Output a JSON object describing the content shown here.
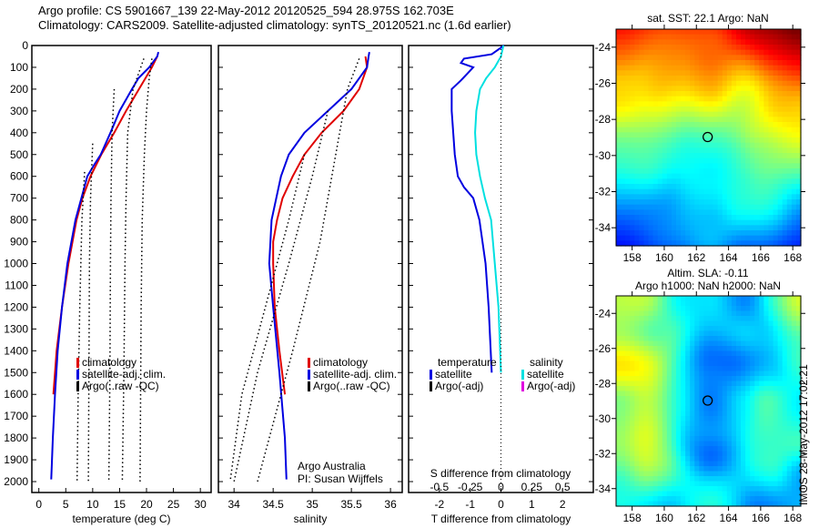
{
  "title_line1": "Argo profile: CS 5901667_139 22-May-2012 20120525_594 28.975S 162.703E",
  "title_line2": "Climatology: CARS2009. Satellite-adjusted climatology: synTS_20120521.nc (1.6d earlier)",
  "footer_stamp": "IMOS 28-May-2012 17:02:21",
  "chart_data": [
    {
      "type": "line",
      "name": "temperature",
      "xlabel": "temperature (deg C)",
      "xlim": [
        -1.3,
        32
      ],
      "ylim": [
        2050,
        0
      ],
      "xticks": [
        0,
        5,
        10,
        15,
        20,
        25,
        30
      ],
      "yticks": [
        0,
        100,
        200,
        300,
        400,
        500,
        600,
        700,
        800,
        900,
        1000,
        1100,
        1200,
        1300,
        1400,
        1500,
        1600,
        1700,
        1800,
        1900,
        2000
      ],
      "legend": [
        "climatology",
        "satellite-adj. clim.",
        "Argo(..raw -QC)"
      ],
      "series": [
        {
          "name": "climatology",
          "color": "#e00000",
          "depth": [
            50,
            100,
            200,
            300,
            400,
            500,
            600,
            700,
            800,
            1000,
            1200,
            1400,
            1600
          ],
          "values": [
            22,
            21,
            18.6,
            16.2,
            14,
            11.6,
            9.6,
            8.1,
            7,
            5.5,
            4.3,
            3.3,
            2.7
          ]
        },
        {
          "name": "satellite-adj. clim.",
          "color": "#0000e0",
          "depth": [
            30,
            50,
            100,
            150,
            200,
            300,
            400,
            500,
            550,
            600,
            800,
            1000,
            1200,
            1400,
            1600,
            1800,
            1990
          ],
          "values": [
            22.2,
            22,
            20.5,
            18.5,
            17.3,
            15,
            13.3,
            11.5,
            10.2,
            9,
            6.8,
            5.3,
            4.3,
            3.5,
            3,
            2.6,
            2.3
          ]
        },
        {
          "name": "Argo dotted 1",
          "color": "#000",
          "depth": [
            60,
            150,
            300,
            500,
            800,
            1200,
            2000
          ],
          "values": [
            21,
            20.5,
            20,
            19.6,
            19.2,
            19,
            18.8
          ]
        },
        {
          "name": "Argo dotted 2",
          "color": "#000",
          "depth": [
            60,
            200,
            400,
            700,
            1000,
            1500,
            2000
          ],
          "values": [
            19.5,
            17.5,
            16.5,
            16.2,
            16,
            15.8,
            15.5
          ]
        },
        {
          "name": "Argo dotted 3",
          "color": "#000",
          "depth": [
            200,
            400,
            700,
            1000,
            1500,
            2000
          ],
          "values": [
            14,
            13.6,
            13.4,
            13.3,
            13.2,
            13
          ]
        },
        {
          "name": "Argo dotted 4",
          "color": "#000",
          "depth": [
            450,
            700,
            1000,
            1500,
            2000
          ],
          "values": [
            10,
            9.6,
            9.4,
            9.3,
            9.2
          ]
        },
        {
          "name": "Argo dotted 5",
          "color": "#000",
          "depth": [
            580,
            800,
            1200,
            1600,
            2000
          ],
          "values": [
            8.5,
            8,
            7.6,
            7.3,
            7.1
          ]
        }
      ]
    },
    {
      "type": "line",
      "name": "salinity",
      "xlabel": "salinity",
      "xlim": [
        33.8,
        36.15
      ],
      "ylim": [
        2050,
        0
      ],
      "xticks": [
        34,
        34.5,
        35,
        35.5,
        36
      ],
      "legend": [
        "climatology",
        "satellite-adj. clim.",
        "Argo(..raw -QC)"
      ],
      "annotation": [
        "Argo Australia",
        "PI: Susan Wijffels"
      ],
      "series": [
        {
          "name": "climatology",
          "color": "#e00000",
          "depth": [
            50,
            100,
            200,
            300,
            400,
            500,
            600,
            700,
            800,
            900,
            1000,
            1200,
            1400,
            1600
          ],
          "values": [
            35.68,
            35.7,
            35.6,
            35.4,
            35.12,
            34.9,
            34.75,
            34.62,
            34.55,
            34.5,
            34.5,
            34.52,
            34.58,
            34.65
          ]
        },
        {
          "name": "satellite-adj. clim.",
          "color": "#0000e0",
          "depth": [
            30,
            50,
            100,
            200,
            300,
            400,
            500,
            600,
            800,
            1000,
            1200,
            1500,
            1800,
            1990
          ],
          "values": [
            35.73,
            35.72,
            35.7,
            35.5,
            35.2,
            34.9,
            34.7,
            34.6,
            34.48,
            34.45,
            34.5,
            34.58,
            34.65,
            34.67
          ]
        },
        {
          "name": "Argo dotted 1",
          "color": "#000",
          "depth": [
            60,
            200,
            500,
            900,
            1400,
            2000
          ],
          "values": [
            35.6,
            35.45,
            35.3,
            35.1,
            34.75,
            34.3
          ]
        },
        {
          "name": "Argo dotted 2",
          "color": "#000",
          "depth": [
            300,
            600,
            1000,
            1500,
            2000
          ],
          "values": [
            35.2,
            35,
            34.7,
            34.3,
            34.0
          ]
        },
        {
          "name": "Argo dotted 3",
          "color": "#000",
          "depth": [
            500,
            800,
            1200,
            1600,
            2000
          ],
          "values": [
            34.9,
            34.7,
            34.4,
            34.1,
            33.95
          ]
        }
      ]
    },
    {
      "type": "line",
      "name": "difference",
      "xlabel": "T difference from climatology",
      "x2label": "S difference from climatology",
      "xlim": [
        -3,
        3
      ],
      "xticks": [
        -2,
        -1,
        0,
        1,
        2
      ],
      "x2ticks": [
        -0.5,
        -0.25,
        0,
        0.25,
        0.5
      ],
      "ylim": [
        2050,
        0
      ],
      "legend_temperature": {
        "title": "temperature",
        "items": [
          "satellite",
          "Argo(-adj)"
        ]
      },
      "legend_salinity": {
        "title": "salinity",
        "items": [
          "satellite",
          "Argo(-adj)"
        ]
      },
      "series": [
        {
          "name": "T satellite",
          "color": "#0000e0",
          "units": "T",
          "depth": [
            0,
            40,
            60,
            80,
            100,
            130,
            160,
            200,
            300,
            400,
            500,
            600,
            650,
            700,
            800,
            1000,
            1200,
            1500
          ],
          "values": [
            0.1,
            -0.3,
            -1.2,
            -1.3,
            -0.9,
            -1.1,
            -1.3,
            -1.6,
            -1.6,
            -1.55,
            -1.5,
            -1.4,
            -1.2,
            -0.9,
            -0.7,
            -0.5,
            -0.4,
            -0.3
          ]
        },
        {
          "name": "S satellite",
          "color": "#00e0e0",
          "units": "S",
          "depth": [
            0,
            50,
            100,
            150,
            200,
            300,
            400,
            500,
            600,
            700,
            800,
            1000,
            1200,
            1500
          ],
          "values": [
            0.02,
            0.0,
            -0.05,
            -0.12,
            -0.17,
            -0.2,
            -0.21,
            -0.2,
            -0.17,
            -0.13,
            -0.08,
            -0.05,
            -0.02,
            0.0
          ]
        }
      ]
    },
    {
      "type": "heatmap",
      "name": "sst_map",
      "title": "sat. SST: 22.1  Argo: NaN",
      "xlim": [
        157,
        168.5
      ],
      "ylim": [
        -35,
        -23
      ],
      "xticks": [
        158,
        160,
        162,
        164,
        166,
        168
      ],
      "yticks": [
        -24,
        -26,
        -28,
        -30,
        -32,
        -34
      ],
      "marker": {
        "lon": 162.703,
        "lat": -28.975
      }
    },
    {
      "type": "heatmap",
      "name": "sla_map",
      "title": "Altim. SLA: -0.11",
      "subtitle": "Argo h1000: NaN h2000: NaN",
      "xlim": [
        157,
        168.5
      ],
      "ylim": [
        -35,
        -23
      ],
      "xticks": [
        158,
        160,
        162,
        164,
        166,
        168
      ],
      "yticks": [
        -24,
        -26,
        -28,
        -30,
        -32,
        -34
      ],
      "marker": {
        "lon": 162.703,
        "lat": -28.975
      }
    }
  ]
}
